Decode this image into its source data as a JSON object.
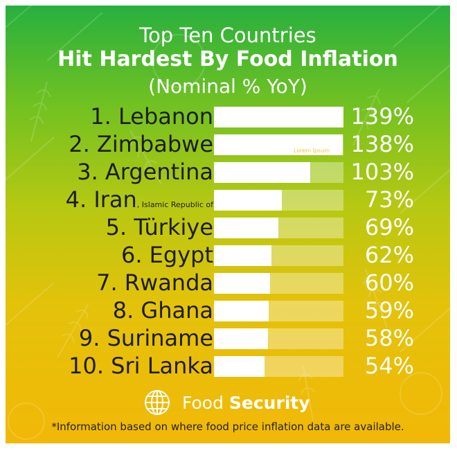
{
  "title": {
    "line1": "Top Ten Countries",
    "line2": "Hit Hardest By Food Inflation",
    "line3": "(Nominal % YoY)"
  },
  "chart_data": {
    "type": "bar",
    "orientation": "horizontal",
    "categories": [
      "1. Lebanon",
      "2. Zimbabwe",
      "3. Argentina",
      "4. Iran",
      "5. Türkiye",
      "6. Egypt",
      "7. Rwanda",
      "8. Ghana",
      "9. Suriname",
      "10. Sri Lanka"
    ],
    "category_notes": [
      "",
      "",
      "",
      ", Islamic Republic of",
      "",
      "",
      "",
      "",
      "",
      ""
    ],
    "values": [
      139,
      138,
      103,
      73,
      69,
      62,
      60,
      59,
      58,
      54
    ],
    "value_labels": [
      "139%",
      "138%",
      "103%",
      "73%",
      "69%",
      "62%",
      "60%",
      "59%",
      "58%",
      "54%"
    ],
    "xlim": [
      0,
      139
    ],
    "grid": false,
    "colors": {
      "bar": "#ffffff",
      "track": "rgba(255,255,255,0.35)",
      "label": "#1d1d1d",
      "value": "#ffffff"
    }
  },
  "ghost_text": "Lorem Ipsum",
  "brand": {
    "icon": "globe-wheat-icon",
    "regular": "Food ",
    "bold": "Security"
  },
  "footnote": "*Information based on where food price inflation data are available.",
  "colors": {
    "gradient_top": "#27b03e",
    "gradient_bottom": "#f2b807"
  }
}
